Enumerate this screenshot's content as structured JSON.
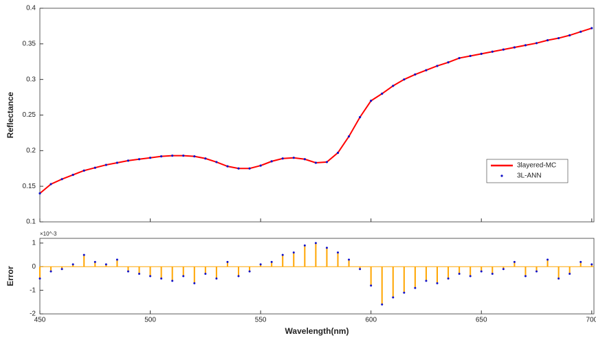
{
  "chart_data": [
    {
      "type": "line",
      "ylabel": "Reflectance",
      "x": [
        450,
        455,
        460,
        465,
        470,
        475,
        480,
        485,
        490,
        495,
        500,
        505,
        510,
        515,
        520,
        525,
        530,
        535,
        540,
        545,
        550,
        555,
        560,
        565,
        570,
        575,
        580,
        585,
        590,
        595,
        600,
        605,
        610,
        615,
        620,
        625,
        630,
        635,
        640,
        645,
        650,
        655,
        660,
        665,
        670,
        675,
        680,
        685,
        690,
        695,
        700
      ],
      "xlim": [
        450,
        701
      ],
      "xticks": [
        450,
        500,
        550,
        600,
        650,
        700
      ],
      "ylim": [
        0.1,
        0.4
      ],
      "yticks": [
        0.1,
        0.15,
        0.2,
        0.25,
        0.3,
        0.35,
        0.4
      ],
      "legend": "lower right",
      "series": [
        {
          "name": "3layered-MC",
          "color": "#ff0000",
          "style": "line",
          "values": [
            0.14,
            0.153,
            0.16,
            0.166,
            0.172,
            0.176,
            0.18,
            0.183,
            0.186,
            0.188,
            0.19,
            0.192,
            0.193,
            0.193,
            0.192,
            0.189,
            0.184,
            0.178,
            0.175,
            0.175,
            0.179,
            0.185,
            0.189,
            0.19,
            0.188,
            0.183,
            0.184,
            0.197,
            0.22,
            0.247,
            0.27,
            0.28,
            0.291,
            0.3,
            0.307,
            0.313,
            0.319,
            0.324,
            0.33,
            0.333,
            0.336,
            0.339,
            0.342,
            0.345,
            0.348,
            0.351,
            0.355,
            0.358,
            0.362,
            0.367,
            0.372
          ]
        },
        {
          "name": "3L-ANN",
          "color": "#1010c8",
          "style": "dots",
          "values": [
            0.14,
            0.153,
            0.16,
            0.166,
            0.172,
            0.176,
            0.18,
            0.183,
            0.186,
            0.188,
            0.19,
            0.192,
            0.193,
            0.193,
            0.192,
            0.189,
            0.184,
            0.178,
            0.175,
            0.175,
            0.179,
            0.185,
            0.189,
            0.19,
            0.188,
            0.183,
            0.184,
            0.197,
            0.22,
            0.247,
            0.27,
            0.28,
            0.291,
            0.3,
            0.307,
            0.313,
            0.319,
            0.324,
            0.33,
            0.333,
            0.336,
            0.339,
            0.342,
            0.345,
            0.348,
            0.351,
            0.355,
            0.358,
            0.362,
            0.367,
            0.372
          ]
        }
      ]
    },
    {
      "type": "stem",
      "ylabel": "Error",
      "xlabel": "Wavelength(nm)",
      "y_exponent": "×10^-3",
      "x": [
        450,
        455,
        460,
        465,
        470,
        475,
        480,
        485,
        490,
        495,
        500,
        505,
        510,
        515,
        520,
        525,
        530,
        535,
        540,
        545,
        550,
        555,
        560,
        565,
        570,
        575,
        580,
        585,
        590,
        595,
        600,
        605,
        610,
        615,
        620,
        625,
        630,
        635,
        640,
        645,
        650,
        655,
        660,
        665,
        670,
        675,
        680,
        685,
        690,
        695,
        700
      ],
      "xlim": [
        450,
        701
      ],
      "xticks": [
        450,
        500,
        550,
        600,
        650,
        700
      ],
      "ylim": [
        -2,
        1.2
      ],
      "yticks": [
        -2,
        -1,
        0,
        1
      ],
      "color": "#ffa500",
      "marker_color": "#1010c8",
      "values": [
        -0.5,
        -0.2,
        -0.1,
        0.1,
        0.5,
        0.2,
        0.1,
        0.3,
        -0.2,
        -0.3,
        -0.4,
        -0.5,
        -0.6,
        -0.4,
        -0.7,
        -0.3,
        -0.5,
        0.2,
        -0.4,
        -0.2,
        0.1,
        0.2,
        0.5,
        0.6,
        0.9,
        1.0,
        0.8,
        0.6,
        0.3,
        -0.1,
        -0.8,
        -1.6,
        -1.3,
        -1.1,
        -0.9,
        -0.6,
        -0.7,
        -0.5,
        -0.3,
        -0.4,
        -0.2,
        -0.3,
        -0.1,
        0.2,
        -0.4,
        -0.2,
        0.3,
        -0.5,
        -0.3,
        0.2,
        0.1
      ]
    }
  ]
}
